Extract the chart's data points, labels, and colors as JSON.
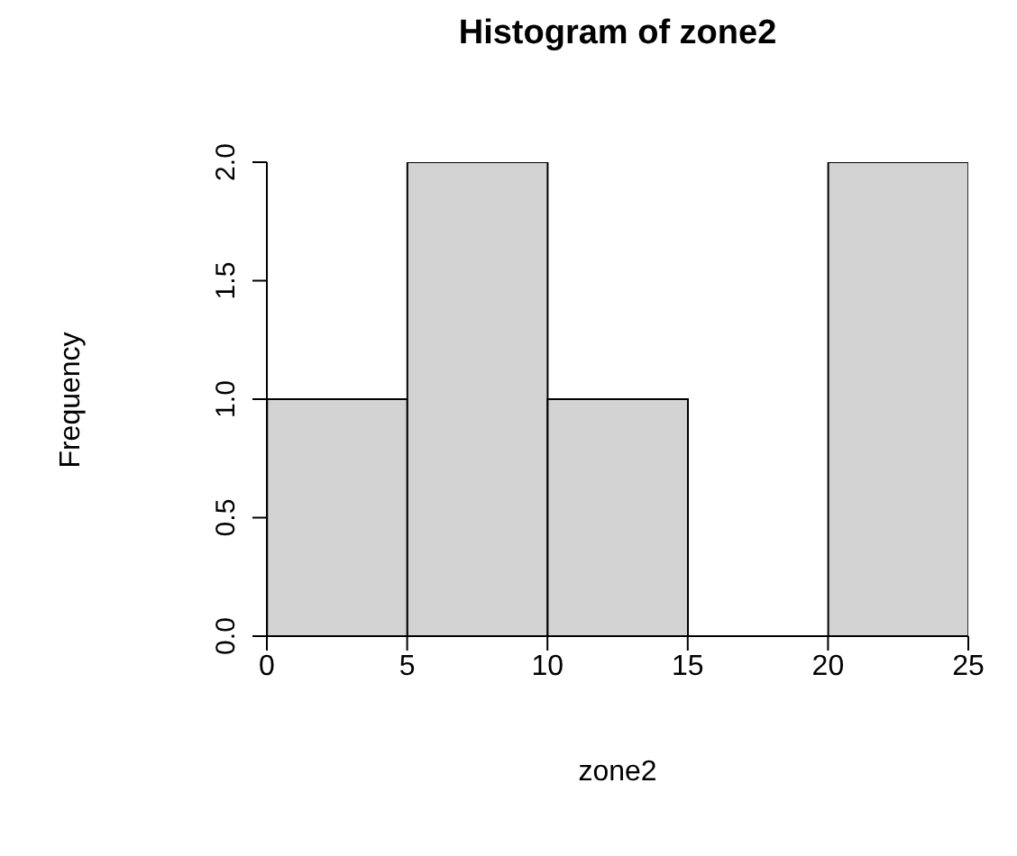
{
  "chart_data": {
    "type": "histogram",
    "title": "Histogram of zone2",
    "xlabel": "zone2",
    "ylabel": "Frequency",
    "bins": [
      0,
      5,
      10,
      15,
      20,
      25
    ],
    "values": [
      1,
      2,
      1,
      0,
      2
    ],
    "color": "#d3d3d3",
    "xlim": [
      0,
      25
    ],
    "xticks": [
      0,
      5,
      10,
      15,
      20,
      25
    ],
    "ylim": [
      0,
      2
    ],
    "yticks": [
      {
        "value": 0,
        "label": "0.0"
      },
      {
        "value": 0.5,
        "label": "0.5"
      },
      {
        "value": 1,
        "label": "1.0"
      },
      {
        "value": 1.5,
        "label": "1.5"
      },
      {
        "value": 2,
        "label": "2.0"
      }
    ],
    "grid": false,
    "legend": false
  }
}
